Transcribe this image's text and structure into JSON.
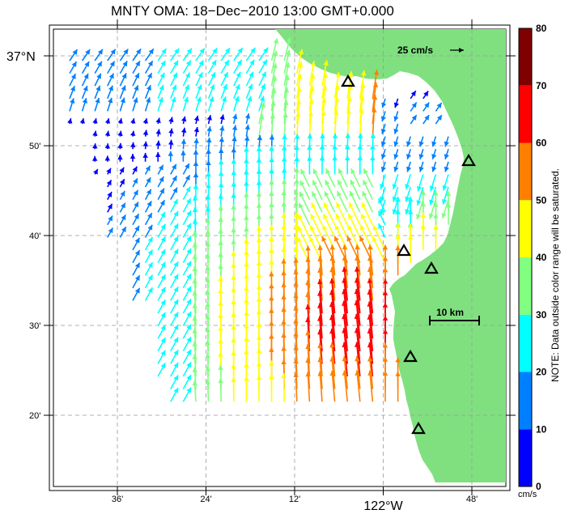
{
  "title": "MNTY OMA: 18−Dec−2010 13:00 GMT+0.000",
  "lat_labels": [
    {
      "text": "37°N",
      "lat": 37.0,
      "major": true
    },
    {
      "text": "50'",
      "lat": 36.8333,
      "major": false
    },
    {
      "text": "40'",
      "lat": 36.6667,
      "major": false
    },
    {
      "text": "30'",
      "lat": 36.5,
      "major": false
    },
    {
      "text": "20'",
      "lat": 36.3333,
      "major": false
    }
  ],
  "lon_labels": [
    {
      "text": "36'",
      "lon": -122.6
    },
    {
      "text": "24'",
      "lon": -122.4
    },
    {
      "text": "12'",
      "lon": -122.2
    },
    {
      "text": "122°W",
      "lon": -122.0,
      "major": true
    },
    {
      "text": "48'",
      "lon": -121.8
    }
  ],
  "colorbar": {
    "ticks": [
      "80",
      "70",
      "60",
      "50",
      "40",
      "30",
      "20",
      "10",
      "0"
    ],
    "unit": "cm/s",
    "colors": [
      "#0000ff",
      "#0080ff",
      "#00ffff",
      "#80ff80",
      "#ffff00",
      "#ff8000",
      "#ff0000",
      "#800000"
    ],
    "note": "NOTE: Data outside color range will be saturated."
  },
  "reference_vector": {
    "label": "25 cm/s"
  },
  "scale_bar": {
    "label": "10 km"
  },
  "land_color": "#80e080",
  "stations": [
    "triangle-station",
    "triangle-station",
    "triangle-station",
    "triangle-station",
    "triangle-station",
    "triangle-station"
  ]
}
